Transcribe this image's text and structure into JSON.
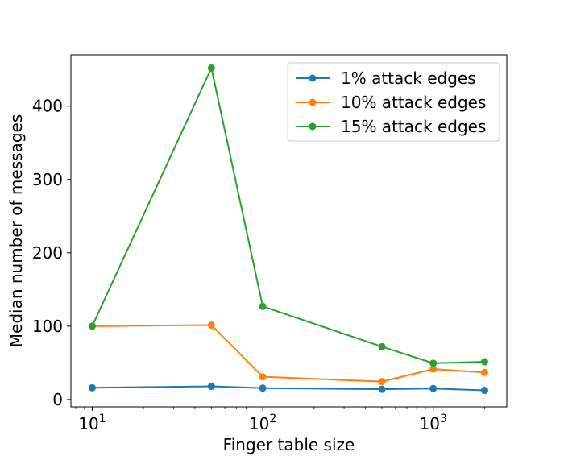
{
  "chart_data": {
    "type": "line",
    "title": "",
    "xlabel": "Finger table size",
    "ylabel": "Median number of messages",
    "xscale": "log",
    "xlim": [
      7.5,
      2700
    ],
    "ylim": [
      -10,
      470
    ],
    "xticks": [
      {
        "value": 10,
        "base": "10",
        "exp": "1"
      },
      {
        "value": 100,
        "base": "10",
        "exp": "2"
      },
      {
        "value": 1000,
        "base": "10",
        "exp": "3"
      }
    ],
    "yticks": [
      0,
      100,
      200,
      300,
      400
    ],
    "grid": false,
    "legend_position": "top-right",
    "x": [
      10,
      50,
      100,
      500,
      1000,
      2000
    ],
    "series": [
      {
        "name": "1% attack edges",
        "color": "#1f77b4",
        "values": [
          16,
          18,
          15.5,
          14,
          15,
          12.5
        ]
      },
      {
        "name": "10% attack edges",
        "color": "#ff7f0e",
        "values": [
          100,
          101.5,
          31,
          24.5,
          41.5,
          37
        ]
      },
      {
        "name": "15% attack edges",
        "color": "#2ca02c",
        "values": [
          100,
          452,
          127,
          72,
          49.5,
          51.5
        ]
      }
    ]
  }
}
